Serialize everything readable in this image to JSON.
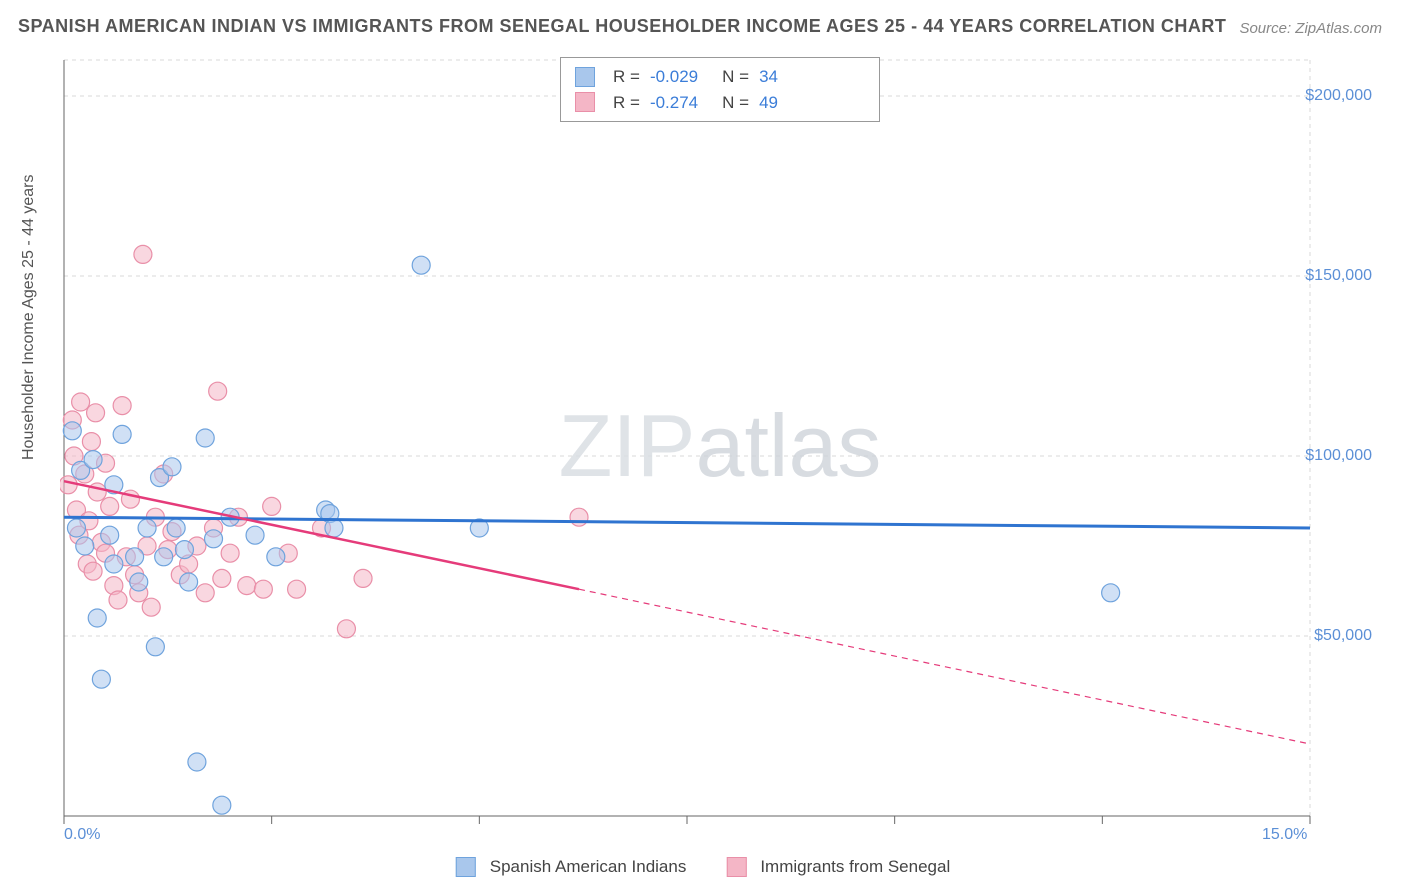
{
  "title": "SPANISH AMERICAN INDIAN VS IMMIGRANTS FROM SENEGAL HOUSEHOLDER INCOME AGES 25 - 44 YEARS CORRELATION CHART",
  "source": "Source: ZipAtlas.com",
  "watermark_a": "ZIP",
  "watermark_b": "atlas",
  "ylabel": "Householder Income Ages 25 - 44 years",
  "colors": {
    "series1_fill": "#a9c7ec",
    "series1_stroke": "#6fa3dd",
    "series2_fill": "#f4b6c6",
    "series2_stroke": "#e98fa8",
    "trend1": "#2f74d0",
    "trend2": "#e53b7a",
    "grid": "#d8d8d8",
    "axis": "#666666",
    "tick_text": "#5b8fd6"
  },
  "chart": {
    "type": "scatter",
    "xlim": [
      0,
      15
    ],
    "ylim": [
      0,
      210000
    ],
    "x_ticks": [
      0,
      2.5,
      5,
      7.5,
      10,
      12.5,
      15
    ],
    "x_tick_labels": {
      "0": "0.0%",
      "15": "15.0%"
    },
    "y_gridlines": [
      50000,
      100000,
      150000,
      200000
    ],
    "y_tick_labels": {
      "50000": "$50,000",
      "100000": "$100,000",
      "150000": "$150,000",
      "200000": "$200,000"
    },
    "marker_radius": 9,
    "marker_opacity": 0.55
  },
  "stats": {
    "r1_label": "R =",
    "r1": "-0.029",
    "n1_label": "N =",
    "n1": "34",
    "r2_label": "R =",
    "r2": "-0.274",
    "n2_label": "N =",
    "n2": "49"
  },
  "legend": {
    "series1": "Spanish American Indians",
    "series2": "Immigrants from Senegal"
  },
  "series1_points": [
    [
      0.1,
      107000
    ],
    [
      0.15,
      80000
    ],
    [
      0.2,
      96000
    ],
    [
      0.25,
      75000
    ],
    [
      0.35,
      99000
    ],
    [
      0.4,
      55000
    ],
    [
      0.45,
      38000
    ],
    [
      0.55,
      78000
    ],
    [
      0.6,
      92000
    ],
    [
      0.6,
      70000
    ],
    [
      0.7,
      106000
    ],
    [
      0.85,
      72000
    ],
    [
      0.9,
      65000
    ],
    [
      1.0,
      80000
    ],
    [
      1.1,
      47000
    ],
    [
      1.15,
      94000
    ],
    [
      1.2,
      72000
    ],
    [
      1.3,
      97000
    ],
    [
      1.35,
      80000
    ],
    [
      1.45,
      74000
    ],
    [
      1.5,
      65000
    ],
    [
      1.6,
      15000
    ],
    [
      1.7,
      105000
    ],
    [
      1.8,
      77000
    ],
    [
      1.9,
      3000
    ],
    [
      2.0,
      83000
    ],
    [
      2.3,
      78000
    ],
    [
      2.55,
      72000
    ],
    [
      3.15,
      85000
    ],
    [
      3.2,
      84000
    ],
    [
      3.25,
      80000
    ],
    [
      4.3,
      153000
    ],
    [
      5.0,
      80000
    ],
    [
      12.6,
      62000
    ]
  ],
  "series2_points": [
    [
      0.05,
      92000
    ],
    [
      0.1,
      110000
    ],
    [
      0.12,
      100000
    ],
    [
      0.15,
      85000
    ],
    [
      0.18,
      78000
    ],
    [
      0.2,
      115000
    ],
    [
      0.25,
      95000
    ],
    [
      0.28,
      70000
    ],
    [
      0.3,
      82000
    ],
    [
      0.33,
      104000
    ],
    [
      0.35,
      68000
    ],
    [
      0.38,
      112000
    ],
    [
      0.4,
      90000
    ],
    [
      0.45,
      76000
    ],
    [
      0.5,
      73000
    ],
    [
      0.5,
      98000
    ],
    [
      0.55,
      86000
    ],
    [
      0.6,
      64000
    ],
    [
      0.65,
      60000
    ],
    [
      0.7,
      114000
    ],
    [
      0.75,
      72000
    ],
    [
      0.8,
      88000
    ],
    [
      0.85,
      67000
    ],
    [
      0.9,
      62000
    ],
    [
      0.95,
      156000
    ],
    [
      1.0,
      75000
    ],
    [
      1.05,
      58000
    ],
    [
      1.1,
      83000
    ],
    [
      1.2,
      95000
    ],
    [
      1.25,
      74000
    ],
    [
      1.3,
      79000
    ],
    [
      1.4,
      67000
    ],
    [
      1.5,
      70000
    ],
    [
      1.6,
      75000
    ],
    [
      1.7,
      62000
    ],
    [
      1.8,
      80000
    ],
    [
      1.85,
      118000
    ],
    [
      1.9,
      66000
    ],
    [
      2.0,
      73000
    ],
    [
      2.1,
      83000
    ],
    [
      2.2,
      64000
    ],
    [
      2.4,
      63000
    ],
    [
      2.5,
      86000
    ],
    [
      2.7,
      73000
    ],
    [
      2.8,
      63000
    ],
    [
      3.1,
      80000
    ],
    [
      3.4,
      52000
    ],
    [
      3.6,
      66000
    ],
    [
      6.2,
      83000
    ]
  ],
  "trend1": {
    "y_at_x0": 83000,
    "y_at_x15": 80000
  },
  "trend2": {
    "y_at_x0": 93000,
    "y_at_solid_end": 63000,
    "solid_end_x": 6.2,
    "y_at_x15": 20000
  }
}
